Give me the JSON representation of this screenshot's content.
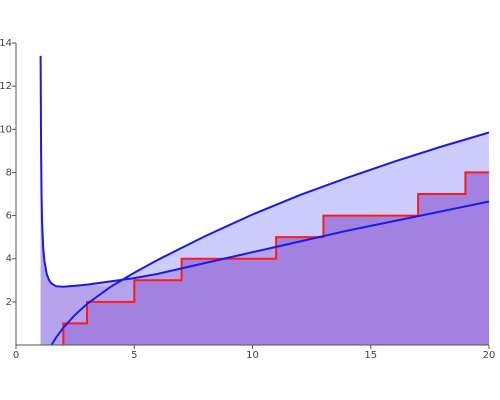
{
  "chart_data": {
    "type": "line",
    "title": "",
    "xlabel": "",
    "ylabel": "",
    "xlim": [
      0,
      20
    ],
    "ylim": [
      0,
      14
    ],
    "x_ticks": [
      0,
      5,
      10,
      15,
      20
    ],
    "y_ticks": [
      2,
      4,
      6,
      8,
      10,
      12,
      14
    ],
    "grid": false,
    "legend": "none",
    "colors": {
      "upper_fill": "#ccccff",
      "lower_fill": "#a282e0",
      "curve": "#1a1ae6",
      "step": "#ff1a1a"
    },
    "series": [
      {
        "kind": "step",
        "breakpoints_x": [
          2,
          3,
          5,
          7,
          11,
          13,
          17,
          19,
          20
        ],
        "values_y": [
          1,
          2,
          3,
          4,
          5,
          6,
          7,
          8
        ]
      },
      {
        "kind": "curve",
        "x": [
          1.04,
          1.06,
          1.08,
          1.1,
          1.15,
          1.2,
          1.3,
          1.4,
          1.5,
          1.7,
          2,
          2.5,
          3,
          4,
          5,
          6,
          7,
          8,
          9,
          10,
          12,
          14,
          16,
          18,
          20
        ],
        "y": [
          13.4,
          9.0,
          7.0,
          5.8,
          4.5,
          3.9,
          3.3,
          3.0,
          2.85,
          2.72,
          2.7,
          2.75,
          2.8,
          2.95,
          3.1,
          3.3,
          3.55,
          3.8,
          4.05,
          4.3,
          4.8,
          5.3,
          5.75,
          6.2,
          6.65
        ]
      },
      {
        "kind": "curve",
        "x": [
          1.5,
          1.7,
          2,
          2.5,
          3,
          4,
          5,
          6,
          7,
          8,
          9,
          10,
          12,
          14,
          16,
          18,
          20
        ],
        "y": [
          0.0,
          0.35,
          0.8,
          1.4,
          1.9,
          2.7,
          3.35,
          3.95,
          4.5,
          5.05,
          5.55,
          6.05,
          6.95,
          7.75,
          8.5,
          9.2,
          9.85
        ]
      }
    ]
  }
}
